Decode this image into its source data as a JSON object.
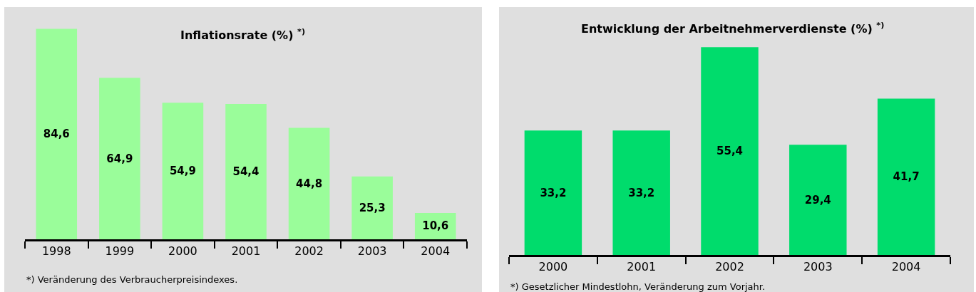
{
  "chart_data": [
    {
      "type": "bar",
      "title": "Inflationsrate (%) $^{*)}$",
      "categories": [
        "1998",
        "1999",
        "2000",
        "2001",
        "2002",
        "2003",
        "2004"
      ],
      "values": [
        84.6,
        64.9,
        54.9,
        54.4,
        44.8,
        25.3,
        10.6
      ],
      "value_labels": [
        "84,6",
        "64,9",
        "54,9",
        "54,4",
        "44,8",
        "25,3",
        "10,6"
      ],
      "color": "#9afd9a",
      "tick_labels": "x",
      "annotations": [
        "*) Veränderung des Verbraucherpreisindexes."
      ]
    },
    {
      "type": "bar",
      "title": "Entwicklung der Arbeitnehmerverdienste (%) $^{*)}$",
      "categories": [
        "2000",
        "2001",
        "2002",
        "2003",
        "2004"
      ],
      "values": [
        33.2,
        33.2,
        55.4,
        29.4,
        41.7
      ],
      "value_labels": [
        "33,2",
        "33,2",
        "55,4",
        "29,4",
        "41,7"
      ],
      "color": "#00dc6c",
      "tick_labels": "x",
      "annotations": [
        "*) Gesetzlicher Mindestlohn, Veränderung zum Vorjahr."
      ]
    }
  ]
}
